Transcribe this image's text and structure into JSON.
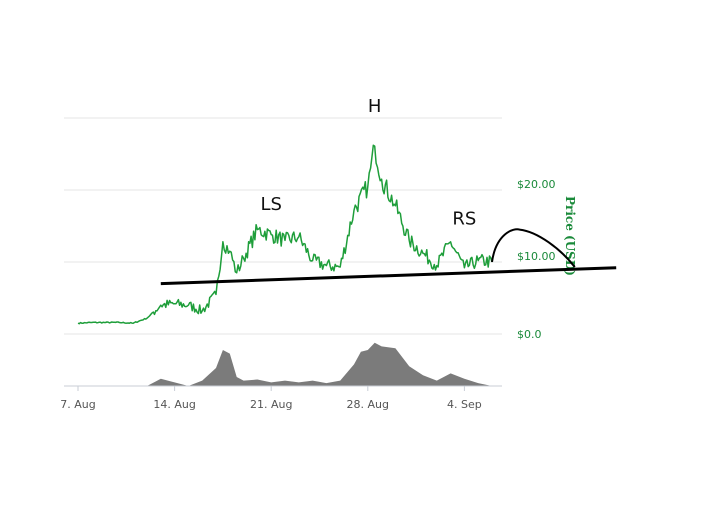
{
  "chart_data": {
    "type": "line",
    "title": "",
    "xlabel": "",
    "ylabel": "Price (USD)",
    "ylim": [
      0,
      28.5
    ],
    "grid": true,
    "x_ticks": [
      "7. Aug",
      "14. Aug",
      "21. Aug",
      "28. Aug",
      "4. Sep"
    ],
    "y_ticks": [
      "$0.0",
      "$10.00",
      "$20.00"
    ],
    "series": [
      {
        "color": "#1e9e3a",
        "points": [
          [
            "2017-08-07",
            1.5
          ],
          [
            "2017-08-08",
            1.6
          ],
          [
            "2017-08-09",
            1.6
          ],
          [
            "2017-08-10",
            1.6
          ],
          [
            "2017-08-11",
            1.5
          ],
          [
            "2017-08-12",
            2.2
          ],
          [
            "2017-08-13",
            4.0
          ],
          [
            "2017-08-14",
            4.2
          ],
          [
            "2017-08-15",
            4.0
          ],
          [
            "2017-08-16",
            3.2
          ],
          [
            "2017-08-17",
            5.5
          ],
          [
            "2017-08-17T12",
            12.8
          ],
          [
            "2017-08-18",
            11.5
          ],
          [
            "2017-08-18T12",
            8.5
          ],
          [
            "2017-08-19",
            10.5
          ],
          [
            "2017-08-20",
            14.5
          ],
          [
            "2017-08-21",
            13.8
          ],
          [
            "2017-08-22",
            13.0
          ],
          [
            "2017-08-23",
            13.5
          ],
          [
            "2017-08-24",
            10.2
          ],
          [
            "2017-08-25",
            9.5
          ],
          [
            "2017-08-26",
            9.3
          ],
          [
            "2017-08-27",
            17.2
          ],
          [
            "2017-08-28",
            20.5
          ],
          [
            "2017-08-28T12",
            26.1
          ],
          [
            "2017-08-29",
            21.5
          ],
          [
            "2017-08-30",
            17.8
          ],
          [
            "2017-08-31",
            13.0
          ],
          [
            "2017-09-01",
            11.2
          ],
          [
            "2017-09-02",
            9.5
          ],
          [
            "2017-09-03",
            12.8
          ],
          [
            "2017-09-04",
            9.2
          ],
          [
            "2017-09-05",
            10.2
          ],
          [
            "2017-09-06",
            10.0
          ]
        ]
      }
    ],
    "volume": [
      [
        "2017-08-07",
        0
      ],
      [
        "2017-08-12",
        0
      ],
      [
        "2017-08-13",
        0.2
      ],
      [
        "2017-08-14",
        0.1
      ],
      [
        "2017-08-15",
        0
      ],
      [
        "2017-08-16",
        0.15
      ],
      [
        "2017-08-17",
        0.5
      ],
      [
        "2017-08-17T12",
        1.0
      ],
      [
        "2017-08-18",
        0.9
      ],
      [
        "2017-08-18T12",
        0.25
      ],
      [
        "2017-08-19",
        0.15
      ],
      [
        "2017-08-20",
        0.18
      ],
      [
        "2017-08-21",
        0.1
      ],
      [
        "2017-08-22",
        0.15
      ],
      [
        "2017-08-23",
        0.1
      ],
      [
        "2017-08-24",
        0.15
      ],
      [
        "2017-08-25",
        0.08
      ],
      [
        "2017-08-26",
        0.15
      ],
      [
        "2017-08-27",
        0.6
      ],
      [
        "2017-08-27T12",
        0.95
      ],
      [
        "2017-08-28",
        1.0
      ],
      [
        "2017-08-28T12",
        1.2
      ],
      [
        "2017-08-29",
        1.1
      ],
      [
        "2017-08-30",
        1.05
      ],
      [
        "2017-08-31",
        0.55
      ],
      [
        "2017-09-01",
        0.3
      ],
      [
        "2017-09-02",
        0.15
      ],
      [
        "2017-09-03",
        0.35
      ],
      [
        "2017-09-04",
        0.2
      ],
      [
        "2017-09-05",
        0.08
      ],
      [
        "2017-09-06",
        0
      ]
    ],
    "annotations": [
      {
        "text": "LS",
        "at": [
          "2017-08-21",
          17.2
        ]
      },
      {
        "text": "H",
        "at": [
          "2017-08-28T12",
          30.8
        ]
      },
      {
        "text": "RS",
        "at": [
          "2017-09-04",
          15.2
        ]
      }
    ],
    "neckline": [
      [
        "2017-08-13",
        7.0
      ],
      [
        "2017-09-15",
        9.2
      ]
    ],
    "projection": [
      [
        "2017-09-06",
        10.0
      ],
      [
        "2017-09-08",
        14.5
      ],
      [
        "2017-09-12",
        9.3
      ]
    ]
  }
}
